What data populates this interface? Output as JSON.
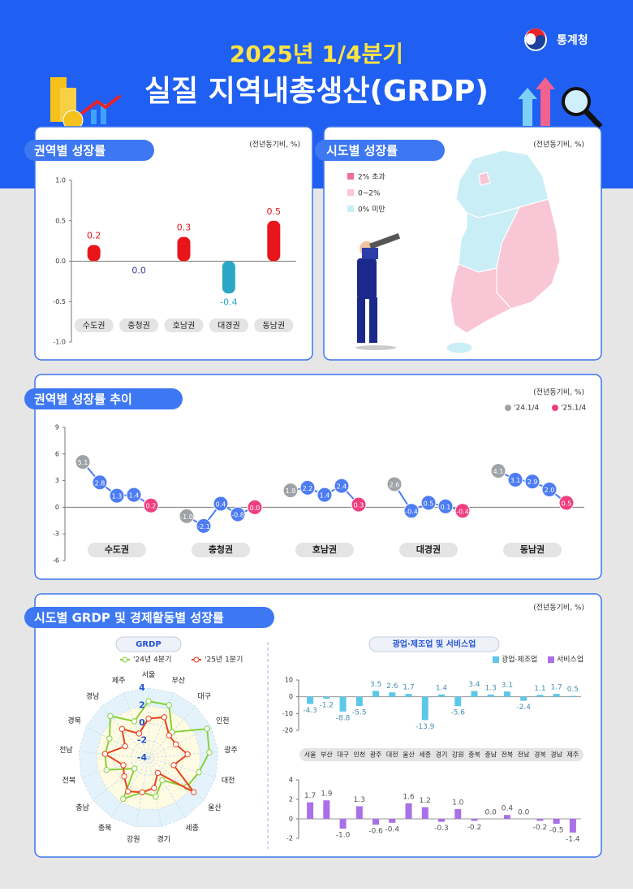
{
  "header": {
    "subtitle": "2025년 1/4분기",
    "title": "실질 지역내총생산(GRDP)",
    "logo": "통계청"
  },
  "sections": [
    {
      "title": "권역별 성장률",
      "unit": "(전년동기비, %)"
    },
    {
      "title": "시도별 성장률",
      "unit": "(전년동기비, %)"
    },
    {
      "title": "권역별 성장률 추이",
      "unit": "(전년동기비, %)"
    },
    {
      "title": "시도별 GRDP 및 경제활동별 성장률",
      "unit": "(전년동기비, %)"
    }
  ],
  "chart_data": [
    {
      "type": "bar",
      "categories": [
        "수도권",
        "충청권",
        "호남권",
        "대경권",
        "동남권"
      ],
      "values": [
        0.2,
        0.0,
        0.3,
        -0.4,
        0.5
      ],
      "value_labels": [
        "0.2",
        "0.0",
        "0.3",
        "-0.4",
        "0.5"
      ],
      "color": "#e8161b",
      "negative_color": "#2aa7c6",
      "ylim": [
        -1,
        1
      ],
      "yticks": [
        {
          "value": 1,
          "label": "1.0"
        },
        0.5,
        {
          "value": 0,
          "label": "0.0"
        },
        -0.5,
        {
          "value": -1,
          "label": "-1.0"
        }
      ]
    },
    {
      "type": "map",
      "legend": [
        {
          "name": "2% 초과",
          "color": "#ee6e96"
        },
        {
          "name": "0~2%",
          "color": "#f8c6d5"
        },
        {
          "name": "0% 미만",
          "color": "#c9eef6"
        }
      ]
    },
    {
      "type": "line",
      "categories": [
        "수도권",
        "충청권",
        "호남권",
        "대경권",
        "동남권"
      ],
      "ylim": [
        -6,
        9
      ],
      "yticks": [
        9,
        6,
        3,
        0,
        -3,
        -6
      ],
      "series": [
        {
          "name": "'24.1/4",
          "color": "#9ea3a8",
          "values": [
            5.1,
            -1.0,
            1.9,
            2.6,
            4.1
          ],
          "value_labels": [
            "5.1",
            "-1.0",
            "1.9",
            "2.6",
            "4.1"
          ]
        },
        {
          "color": "#4d7cf3",
          "values": [
            2.8,
            -2.1,
            2.2,
            -0.4,
            3.1
          ],
          "value_labels": [
            "2.8",
            "-2.1",
            "2.2",
            "-0.4",
            "3.1"
          ]
        },
        {
          "color": "#4d7cf3",
          "values": [
            1.3,
            0.4,
            1.4,
            0.5,
            2.9
          ],
          "value_labels": [
            "1.3",
            "0.4",
            "1.4",
            "0.5",
            "2.9"
          ]
        },
        {
          "color": "#4d7cf3",
          "values": [
            1.4,
            -0.8,
            2.4,
            0.1,
            2.0
          ],
          "value_labels": [
            "1.4",
            "-0.8",
            "2.4",
            "0.1",
            "2.0"
          ]
        },
        {
          "name": "'25.1/4",
          "color": "#ef3f80",
          "values": [
            0.2,
            0.0,
            0.3,
            -0.4,
            0.5
          ],
          "value_labels": [
            "0.2",
            "0.0",
            "0.3",
            "-0.4",
            "0.5"
          ]
        }
      ]
    },
    {
      "type": "radar",
      "title": "GRDP",
      "categories": [
        "서울",
        "부산",
        "대구",
        "인천",
        "광주",
        "대전",
        "울산",
        "세종",
        "경기",
        "강원",
        "충북",
        "충남",
        "전북",
        "전남",
        "경북",
        "경남",
        "제주"
      ],
      "rlim": [
        -4,
        4
      ],
      "rticks": [
        4,
        2,
        0,
        -2,
        -4
      ],
      "series": [
        {
          "name": "'24년 4분기",
          "color": "#86d13a",
          "values": [
            2.5,
            2.5,
            0.0,
            3.5,
            3.0,
            2.0,
            1.5,
            -1.0,
            0.5,
            0.0,
            1.5,
            -2.0,
            1.0,
            1.0,
            1.0,
            2.5,
            0.5
          ]
        },
        {
          "name": "'25년 1분기",
          "color": "#e8441c",
          "values": [
            0.5,
            1.0,
            -0.5,
            -0.5,
            0.5,
            -1.0,
            2.5,
            -2.0,
            -0.5,
            0.0,
            0.5,
            -0.5,
            -1.0,
            1.0,
            -1.0,
            0.5,
            -1.0
          ]
        }
      ]
    },
    {
      "type": "bar",
      "title": "광업·제조업 및 서비스업",
      "categories": [
        "서울",
        "부산",
        "대구",
        "인천",
        "광주",
        "대전",
        "울산",
        "세종",
        "경기",
        "강원",
        "충북",
        "충남",
        "전북",
        "전남",
        "경북",
        "경남",
        "제주"
      ],
      "series": [
        {
          "name": "광업·제조업",
          "color": "#5bc8e8",
          "ylim": [
            -20,
            10
          ],
          "yticks": [
            10,
            0,
            -10,
            -20
          ],
          "values": [
            -4.3,
            -1.2,
            -8.8,
            -5.5,
            3.5,
            2.6,
            1.7,
            -13.9,
            1.4,
            -5.6,
            3.4,
            1.3,
            3.1,
            -2.4,
            1.1,
            1.7,
            0.5
          ],
          "value_labels": [
            "-4.3",
            "-1.2",
            "-8.8",
            "-5.5",
            "3.5",
            "2.6",
            "1.7",
            "-13.9",
            "1.4",
            "-5.6",
            "3.4",
            "1.3",
            "3.1",
            "-2.4",
            "1.1",
            "1.7",
            "0.5"
          ]
        },
        {
          "name": "서비스업",
          "color": "#a970e8",
          "ylim": [
            -2,
            4
          ],
          "yticks": [
            4,
            2,
            0,
            -2
          ],
          "values": [
            1.7,
            1.9,
            -1.0,
            1.3,
            -0.6,
            -0.4,
            1.6,
            1.2,
            -0.3,
            1.0,
            -0.2,
            0.0,
            0.4,
            0.0,
            -0.2,
            -0.5,
            -1.4
          ],
          "value_labels": [
            "1.7",
            "1.9",
            "-1.0",
            "1.3",
            "-0.6",
            "-0.4",
            "1.6",
            "1.2",
            "-0.3",
            "1.0",
            "-0.2",
            "0.0",
            "0.4",
            "0.0",
            "-0.2",
            "-0.5",
            "-1.4"
          ]
        }
      ]
    }
  ]
}
